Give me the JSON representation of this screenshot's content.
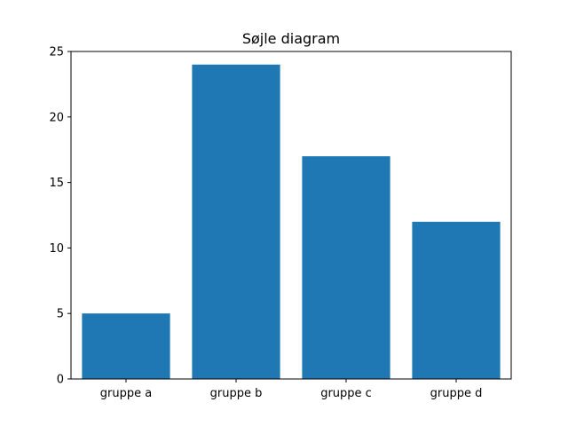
{
  "chart_data": {
    "type": "bar",
    "title": "Søjle diagram",
    "xlabel": "",
    "ylabel": "",
    "categories": [
      "gruppe a",
      "gruppe b",
      "gruppe c",
      "gruppe d"
    ],
    "values": [
      5,
      24,
      17,
      12
    ],
    "ylim": [
      0,
      25
    ],
    "yticks": [
      0,
      5,
      10,
      15,
      20,
      25
    ],
    "bar_color": "#1f77b4",
    "grid": false,
    "legend": "none"
  }
}
